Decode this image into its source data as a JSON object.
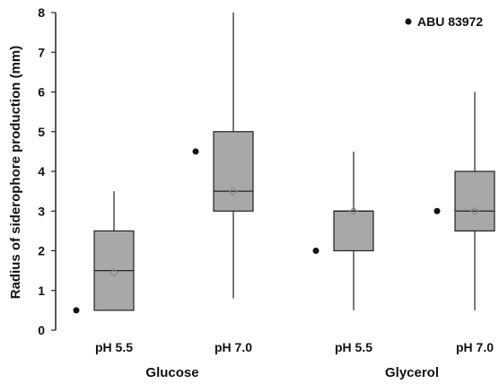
{
  "chart_data": {
    "type": "boxplot",
    "ylabel": "Radius of siderophore production (mm)",
    "ylim": [
      0,
      8
    ],
    "yticks": [
      "0",
      "1",
      "2",
      "3",
      "4",
      "5",
      "6",
      "7",
      "8"
    ],
    "groups": [
      "Glucose",
      "Glycerol"
    ],
    "categories": [
      "pH 5.5",
      "pH 7.0",
      "pH 5.5",
      "pH 7.0"
    ],
    "legend": {
      "label": "ABU 83972",
      "position": "top-right"
    },
    "boxes": [
      {
        "group": "Glucose",
        "category": "pH 5.5",
        "min": 0.5,
        "q1": 0.5,
        "median": 1.5,
        "mean": 1.45,
        "q3": 2.5,
        "max": 3.5,
        "marker": 0.5
      },
      {
        "group": "Glucose",
        "category": "pH 7.0",
        "min": 0.8,
        "q1": 3.0,
        "median": 3.5,
        "mean": 3.5,
        "q3": 5.0,
        "max": 8.0,
        "marker": 4.5
      },
      {
        "group": "Glycerol",
        "category": "pH 5.5",
        "min": 0.5,
        "q1": 2.0,
        "median": 3.0,
        "mean": 3.0,
        "q3": 3.0,
        "max": 4.5,
        "marker": 2.0
      },
      {
        "group": "Glycerol",
        "category": "pH 7.0",
        "min": 0.5,
        "q1": 2.5,
        "median": 3.0,
        "mean": 3.0,
        "q3": 4.0,
        "max": 6.0,
        "marker": 3.0
      }
    ],
    "colors": {
      "box": "#a8a8a8",
      "box_stroke": "#222222",
      "whisker": "#222222",
      "marker": "#111111",
      "mean_marker": "#8a8a8a"
    }
  }
}
